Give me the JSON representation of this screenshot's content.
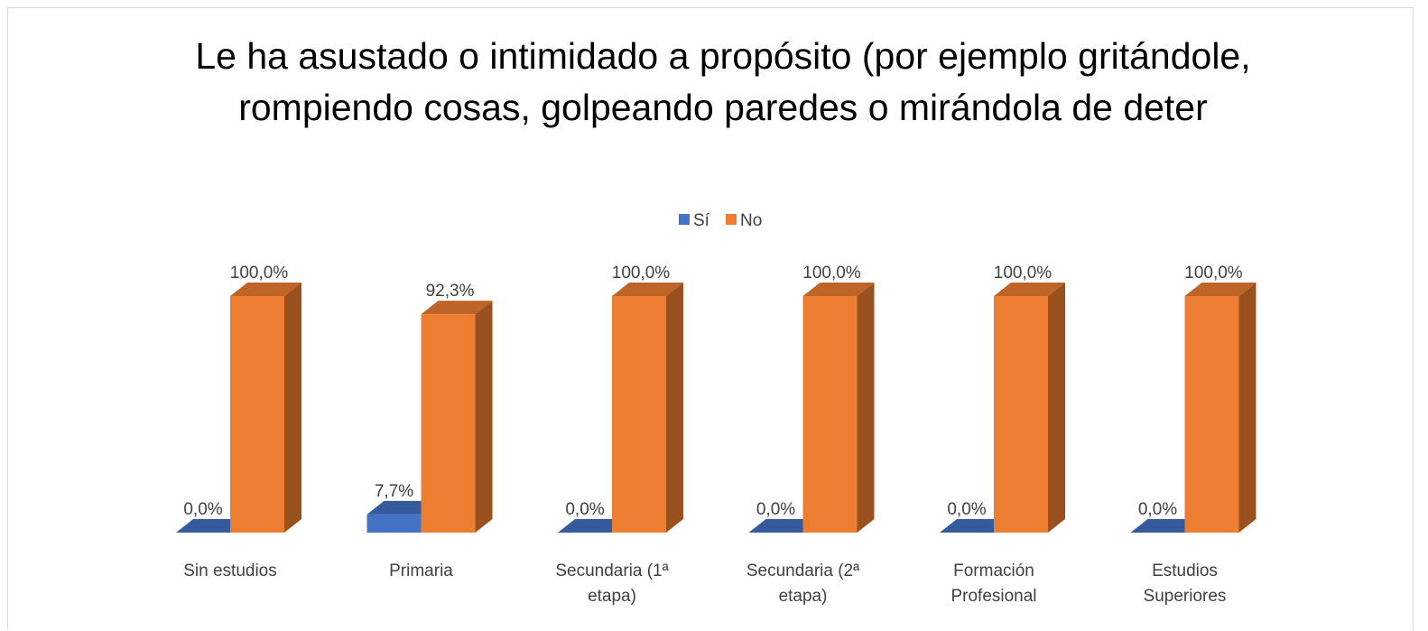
{
  "chart_data": {
    "type": "bar3d",
    "title": "Le ha asustado o intimidado a propósito (por ejemplo gritándole, rompiendo cosas, golpeando paredes o mirándola de deter",
    "categories": [
      "Sin estudios",
      "Primaria",
      "Secundaria (1ª etapa)",
      "Secundaria (2ª etapa)",
      "Formación Profesional",
      "Estudios Superiores"
    ],
    "ylim": [
      0,
      100
    ],
    "legend": "top",
    "series": [
      {
        "name": "Sí",
        "color": "#4472c4",
        "values": [
          0,
          7.7,
          0,
          0,
          0,
          0
        ],
        "value_labels": [
          "0,0%",
          "7,7%",
          "0,0%",
          "0,0%",
          "0,0%",
          "0,0%"
        ]
      },
      {
        "name": "No",
        "color": "#ed7d31",
        "values": [
          100,
          92.3,
          100,
          100,
          100,
          100
        ],
        "value_labels": [
          "100,0%",
          "92,3%",
          "100,0%",
          "100,0%",
          "100,0%",
          "100,0%"
        ]
      }
    ]
  }
}
